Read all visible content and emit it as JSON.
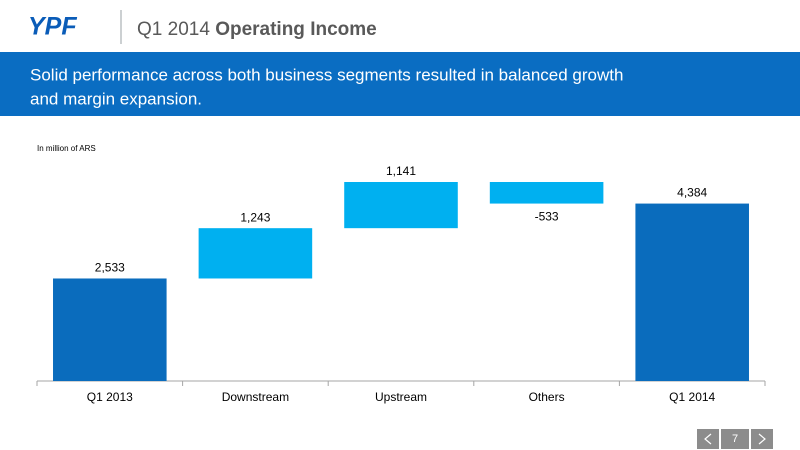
{
  "header": {
    "logo": "YPF",
    "title_prefix": "Q1 2014",
    "title": "Operating Income"
  },
  "banner": {
    "lines": [
      "Solid performance across both business segments resulted in balanced growth",
      "and margin expansion."
    ]
  },
  "chart_data": {
    "type": "waterfall",
    "note": "In million of ARS",
    "categories": [
      "Q1 2013",
      "Downstream",
      "Upstream",
      "Others",
      "Q1 2014"
    ],
    "values": [
      2533,
      1243,
      1141,
      -533,
      4384
    ],
    "value_labels": [
      "2,533",
      "1,243",
      "1,141",
      "-533",
      "4,384"
    ],
    "colors": [
      "#0a6cbd",
      "#00b0f0",
      "#00b0f0",
      "#00b0f0",
      "#0a6cbd"
    ]
  },
  "footer": {
    "page": "7"
  }
}
